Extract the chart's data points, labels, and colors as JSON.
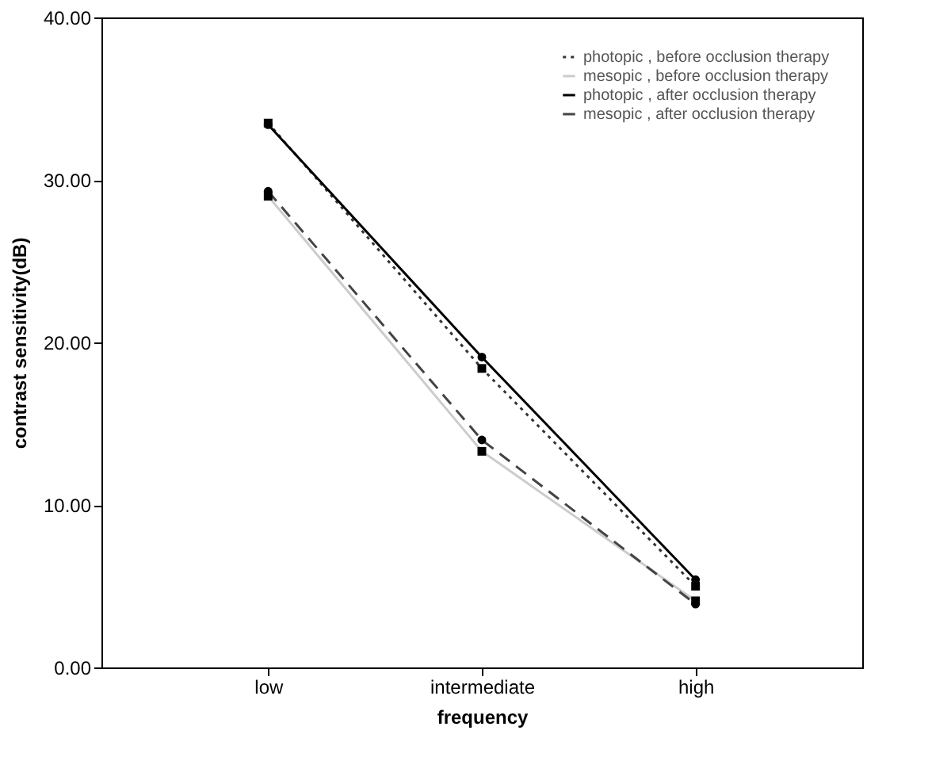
{
  "chart_data": {
    "type": "line",
    "xlabel": "frequency",
    "ylabel": "contrast sensitivity(dB)",
    "categories": [
      "low",
      "intermediate",
      "high"
    ],
    "series": [
      {
        "name": "photopic , before occlusion therapy",
        "color": "#333333",
        "line_style": "dotted",
        "marker": "square",
        "values": [
          33.5,
          18.4,
          5.0
        ]
      },
      {
        "name": "mesopic , before occlusion therapy",
        "color": "#cccccc",
        "line_style": "solid",
        "marker": "square",
        "values": [
          29.0,
          13.3,
          4.1
        ]
      },
      {
        "name": "photopic , after occlusion therapy",
        "color": "#000000",
        "line_style": "solid",
        "marker": "circle",
        "values": [
          33.4,
          19.1,
          5.4
        ]
      },
      {
        "name": "mesopic , after occlusion therapy",
        "color": "#444444",
        "line_style": "dashed",
        "marker": "circle",
        "values": [
          29.3,
          14.0,
          3.9
        ]
      }
    ],
    "ylim": [
      0,
      40
    ],
    "yticks": [
      {
        "value": 0,
        "label": "0.00"
      },
      {
        "value": 10,
        "label": "10.00"
      },
      {
        "value": 20,
        "label": "20.00"
      },
      {
        "value": 30,
        "label": "30.00"
      },
      {
        "value": 40,
        "label": "40.00"
      }
    ],
    "grid": false,
    "legend": "top right"
  }
}
